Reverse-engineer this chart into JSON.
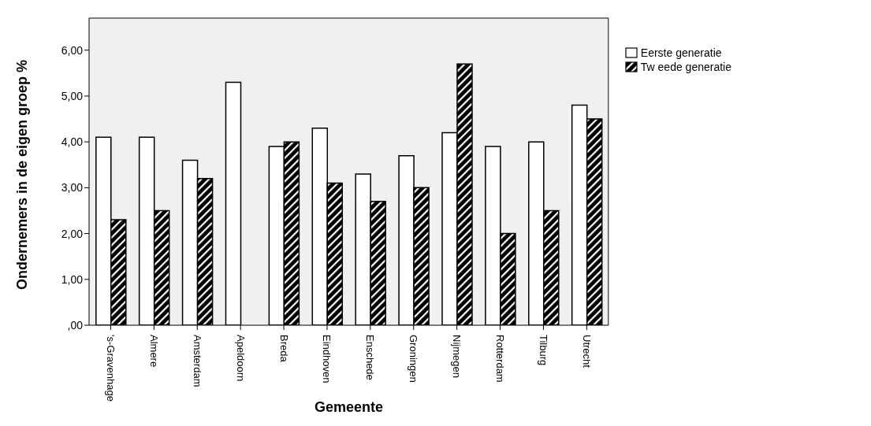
{
  "chart_data": {
    "type": "bar",
    "xlabel": "Gemeente",
    "ylabel": "Ondernemers in de eigen groep %",
    "categories": [
      "'s-Gravenhage",
      "Almere",
      "Amsterdam",
      "Apeldoorn",
      "Breda",
      "Eindhoven",
      "Enschede",
      "Groningen",
      "Nijmegen",
      "Rotterdam",
      "Tilburg",
      "Utrecht"
    ],
    "series": [
      {
        "name": "Eerste generatie",
        "color": "#ffffff",
        "values": [
          4.1,
          4.1,
          3.6,
          5.3,
          3.9,
          4.3,
          3.3,
          3.7,
          4.2,
          3.9,
          4.0,
          4.8
        ]
      },
      {
        "name": "Tw eede generatie",
        "color": "#000000",
        "values": [
          2.3,
          2.5,
          3.2,
          null,
          4.0,
          3.1,
          2.7,
          3.0,
          5.7,
          2.0,
          2.5,
          4.5
        ]
      }
    ],
    "ylim": [
      0,
      6.7
    ],
    "yticks": [
      {
        "value": 0,
        "label": ",00"
      },
      {
        "value": 1,
        "label": "1,00"
      },
      {
        "value": 2,
        "label": "2,00"
      },
      {
        "value": 3,
        "label": "3,00"
      },
      {
        "value": 4,
        "label": "4,00"
      },
      {
        "value": 5,
        "label": "5,00"
      },
      {
        "value": 6,
        "label": "6,00"
      }
    ],
    "grid": false,
    "legend": "top right"
  }
}
